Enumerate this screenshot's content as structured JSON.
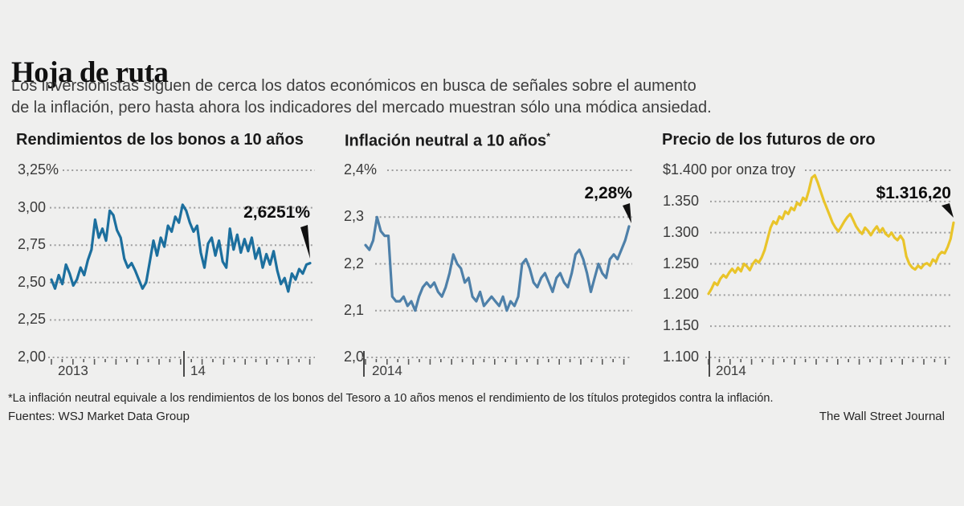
{
  "page": {
    "background": "#efefee"
  },
  "header": {
    "title": "Hoja de ruta",
    "subtitle_line1": "Los inversionistas siguen de cerca los datos económicos en busca de señales sobre el aumento",
    "subtitle_line2": "de la inflación, pero hasta ahora los indicadores del mercado muestran sólo una módica ansiedad."
  },
  "footer": {
    "footnote": "*La inflación neutral equivale a los rendimientos de los bonos del Tesoro a 10 años menos el rendimiento de los títulos protegidos contra la inflación.",
    "sources": "Fuentes: WSJ Market Data Group",
    "credit": "The Wall Street Journal"
  },
  "chart_data": [
    {
      "type": "line",
      "title": "Rendimientos de los bonos a 10 años",
      "title_marker": "",
      "line_color": "#1c6f9e",
      "ylim": [
        2.0,
        3.25
      ],
      "yticks": [
        {
          "value": 3.25,
          "label": "3,25%"
        },
        {
          "value": 3.0,
          "label": "3,00"
        },
        {
          "value": 2.75,
          "label": "2,75"
        },
        {
          "value": 2.5,
          "label": "2,50"
        },
        {
          "value": 2.25,
          "label": "2,25"
        },
        {
          "value": 2.0,
          "label": "2,00"
        }
      ],
      "year_labels": [
        "2013",
        "14"
      ],
      "end_label": "2,6251%",
      "grid": "dotted",
      "legend": "none",
      "values": [
        2.52,
        2.46,
        2.55,
        2.49,
        2.62,
        2.56,
        2.48,
        2.52,
        2.6,
        2.55,
        2.65,
        2.72,
        2.92,
        2.8,
        2.86,
        2.78,
        2.98,
        2.95,
        2.85,
        2.8,
        2.66,
        2.6,
        2.63,
        2.58,
        2.52,
        2.46,
        2.5,
        2.64,
        2.78,
        2.68,
        2.8,
        2.74,
        2.88,
        2.84,
        2.94,
        2.9,
        3.02,
        2.98,
        2.9,
        2.84,
        2.88,
        2.7,
        2.6,
        2.76,
        2.8,
        2.68,
        2.78,
        2.64,
        2.6,
        2.86,
        2.72,
        2.82,
        2.7,
        2.79,
        2.71,
        2.8,
        2.66,
        2.73,
        2.6,
        2.69,
        2.62,
        2.71,
        2.58,
        2.49,
        2.53,
        2.44,
        2.56,
        2.52,
        2.59,
        2.56,
        2.62,
        2.63
      ]
    },
    {
      "type": "line",
      "title": "Inflación neutral a 10 años",
      "title_marker": "*",
      "line_color": "#4e80a9",
      "ylim": [
        2.0,
        2.4
      ],
      "yticks": [
        {
          "value": 2.4,
          "label": "2,4%"
        },
        {
          "value": 2.3,
          "label": "2,3"
        },
        {
          "value": 2.2,
          "label": "2,2"
        },
        {
          "value": 2.1,
          "label": "2,1"
        },
        {
          "value": 2.0,
          "label": "2,0"
        }
      ],
      "year_labels": [
        "2014"
      ],
      "end_label": "2,28%",
      "grid": "dotted",
      "legend": "none",
      "values": [
        2.24,
        2.23,
        2.25,
        2.3,
        2.27,
        2.26,
        2.26,
        2.13,
        2.12,
        2.12,
        2.13,
        2.11,
        2.12,
        2.1,
        2.13,
        2.15,
        2.16,
        2.15,
        2.16,
        2.14,
        2.13,
        2.15,
        2.18,
        2.22,
        2.2,
        2.19,
        2.16,
        2.17,
        2.13,
        2.12,
        2.14,
        2.11,
        2.12,
        2.13,
        2.12,
        2.11,
        2.13,
        2.1,
        2.12,
        2.11,
        2.13,
        2.2,
        2.21,
        2.19,
        2.16,
        2.15,
        2.17,
        2.18,
        2.16,
        2.14,
        2.17,
        2.18,
        2.16,
        2.15,
        2.18,
        2.22,
        2.23,
        2.21,
        2.18,
        2.14,
        2.17,
        2.2,
        2.18,
        2.17,
        2.21,
        2.22,
        2.21,
        2.23,
        2.25,
        2.28
      ]
    },
    {
      "type": "line",
      "title": "Precio de los futuros de oro",
      "title_marker": "",
      "line_color": "#e9c42a",
      "ylim": [
        1100,
        1400
      ],
      "yticks": [
        {
          "value": 1400,
          "label": "$1.400 por onza troy"
        },
        {
          "value": 1350,
          "label": "1.350"
        },
        {
          "value": 1300,
          "label": "1.300"
        },
        {
          "value": 1250,
          "label": "1.250"
        },
        {
          "value": 1200,
          "label": "1.200"
        },
        {
          "value": 1150,
          "label": "1.150"
        },
        {
          "value": 1100,
          "label": "1.100"
        }
      ],
      "year_labels": [
        "2014"
      ],
      "end_label": "$1.316,20",
      "grid": "dotted",
      "legend": "none",
      "values": [
        1202,
        1210,
        1220,
        1216,
        1226,
        1232,
        1228,
        1236,
        1242,
        1236,
        1244,
        1238,
        1250,
        1246,
        1240,
        1250,
        1256,
        1252,
        1260,
        1272,
        1290,
        1308,
        1318,
        1314,
        1326,
        1322,
        1334,
        1330,
        1340,
        1336,
        1348,
        1344,
        1356,
        1352,
        1368,
        1388,
        1392,
        1380,
        1366,
        1352,
        1340,
        1328,
        1316,
        1308,
        1302,
        1310,
        1318,
        1325,
        1330,
        1320,
        1310,
        1303,
        1298,
        1308,
        1303,
        1296,
        1304,
        1310,
        1301,
        1307,
        1298,
        1294,
        1300,
        1292,
        1288,
        1295,
        1288,
        1262,
        1250,
        1244,
        1241,
        1247,
        1243,
        1249,
        1251,
        1247,
        1257,
        1253,
        1264,
        1269,
        1267,
        1277,
        1290,
        1316
      ]
    }
  ]
}
